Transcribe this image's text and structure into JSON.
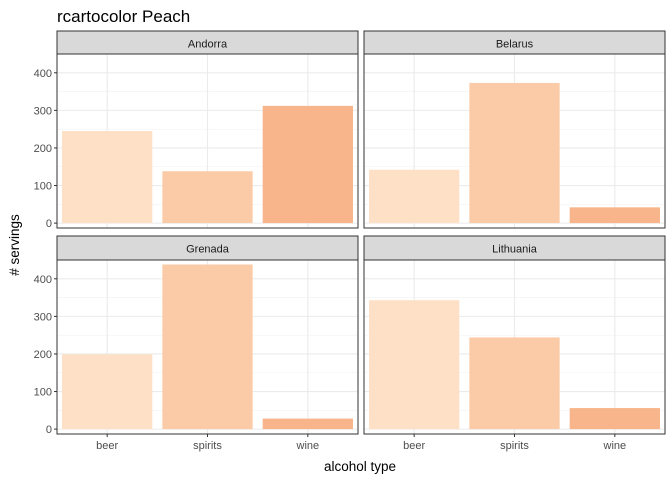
{
  "chart_data": {
    "type": "bar",
    "title": "rcartocolor Peach",
    "xlabel": "alcohol type",
    "ylabel": "# servings",
    "categories": [
      "beer",
      "spirits",
      "wine"
    ],
    "ylim": [
      -13,
      450
    ],
    "yticks": [
      0,
      100,
      200,
      300,
      400
    ],
    "grid": true,
    "legend": "none",
    "colors": {
      "beer": "#fde0c5",
      "spirits": "#facba6",
      "wine": "#f8b58b"
    },
    "panels": [
      {
        "name": "Andorra",
        "values": [
          245,
          138,
          312
        ]
      },
      {
        "name": "Belarus",
        "values": [
          142,
          373,
          42
        ]
      },
      {
        "name": "Grenada",
        "values": [
          199,
          438,
          28
        ]
      },
      {
        "name": "Lithuania",
        "values": [
          343,
          244,
          56
        ]
      }
    ]
  }
}
